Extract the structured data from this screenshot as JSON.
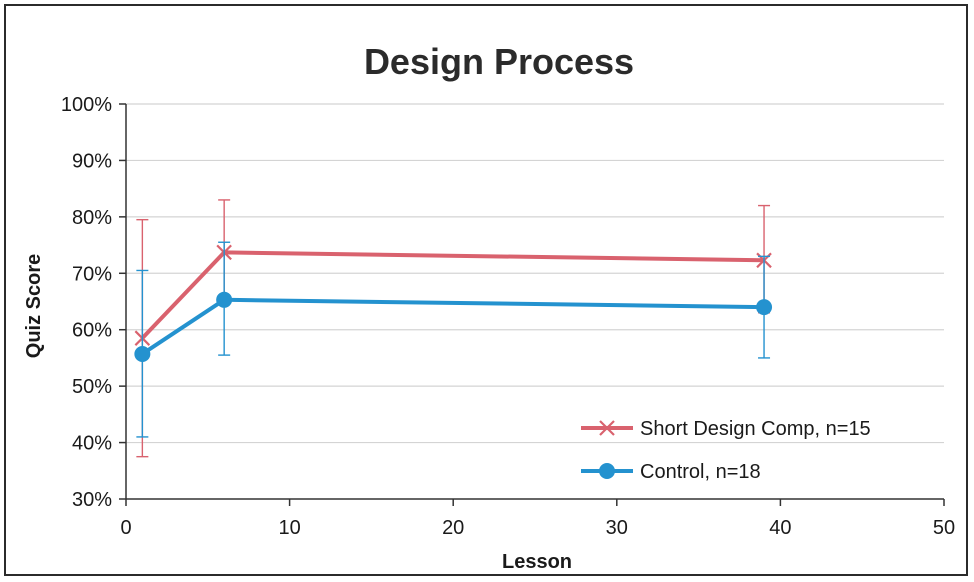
{
  "chart_data": {
    "type": "line",
    "title": "Design Process",
    "xlabel": "Lesson",
    "ylabel": "Quiz Score",
    "xlim": [
      0,
      50
    ],
    "ylim": [
      30,
      100
    ],
    "x_ticks": [
      0,
      10,
      20,
      30,
      40,
      50
    ],
    "y_ticks": [
      30,
      40,
      50,
      60,
      70,
      80,
      90,
      100
    ],
    "y_tick_suffix": "%",
    "grid": "horizontal",
    "legend_position": "bottom-right",
    "series": [
      {
        "name": "Short Design Comp, n=15",
        "color": "#d9626e",
        "marker": "x",
        "points": [
          {
            "x": 1,
            "y": 58.5,
            "err_low": 37.5,
            "err_high": 79.5
          },
          {
            "x": 6,
            "y": 73.7,
            "err_low": 65.0,
            "err_high": 83.0
          },
          {
            "x": 39,
            "y": 72.3,
            "err_low": 63.0,
            "err_high": 82.0
          }
        ]
      },
      {
        "name": "Control, n=18",
        "color": "#2492cf",
        "marker": "circle",
        "points": [
          {
            "x": 1,
            "y": 55.7,
            "err_low": 41.0,
            "err_high": 70.5
          },
          {
            "x": 6,
            "y": 65.3,
            "err_low": 55.5,
            "err_high": 75.5
          },
          {
            "x": 39,
            "y": 64.0,
            "err_low": 55.0,
            "err_high": 73.0
          }
        ]
      }
    ]
  }
}
